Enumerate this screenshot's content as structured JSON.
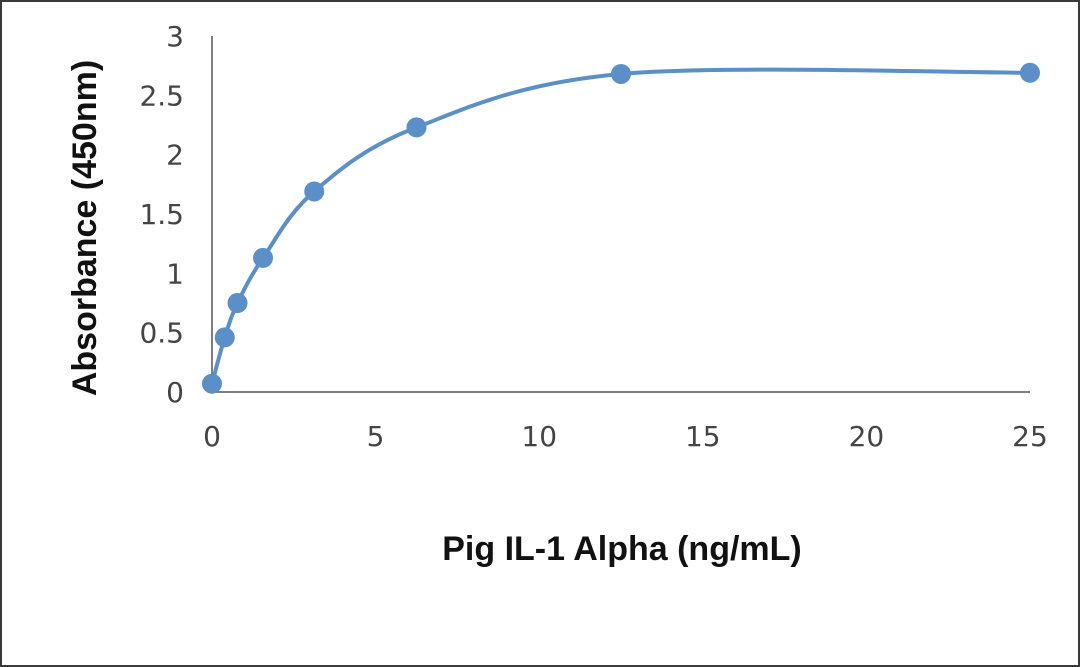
{
  "chart_data": {
    "type": "scatter",
    "xlabel": "Pig IL-1 Alpha (ng/mL)",
    "ylabel": "Absorbance (450nm)",
    "xlim": [
      0,
      25
    ],
    "ylim": [
      0,
      3
    ],
    "xticks": [
      "0",
      "5",
      "10",
      "15",
      "20",
      "25"
    ],
    "yticks": [
      "0",
      "0.5",
      "1",
      "1.5",
      "2",
      "2.5",
      "3"
    ],
    "grid": false,
    "legend": "none",
    "smoothed_line": true,
    "series": [
      {
        "color": "#5b8fc7",
        "x": [
          0,
          0.39,
          0.78,
          1.56,
          3.125,
          6.25,
          12.5,
          25
        ],
        "y": [
          0.07,
          0.46,
          0.75,
          1.13,
          1.69,
          2.23,
          2.68,
          2.69
        ]
      }
    ]
  }
}
